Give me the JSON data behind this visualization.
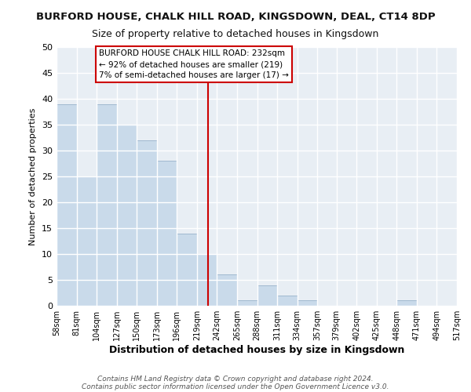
{
  "title": "BURFORD HOUSE, CHALK HILL ROAD, KINGSDOWN, DEAL, CT14 8DP",
  "subtitle": "Size of property relative to detached houses in Kingsdown",
  "xlabel": "Distribution of detached houses by size in Kingsdown",
  "ylabel": "Number of detached properties",
  "bar_edges": [
    58,
    81,
    104,
    127,
    150,
    173,
    196,
    219,
    242,
    265,
    288,
    311,
    334,
    357,
    379,
    402,
    425,
    448,
    471,
    494,
    517
  ],
  "bar_heights": [
    39,
    25,
    39,
    35,
    32,
    28,
    14,
    10,
    6,
    1,
    4,
    2,
    1,
    0,
    0,
    0,
    0,
    1,
    0,
    0
  ],
  "bar_color": "#c9daea",
  "bar_edge_color": "#a0b8d0",
  "reference_line_x": 232,
  "reference_line_color": "#cc0000",
  "ylim": [
    0,
    50
  ],
  "yticks": [
    0,
    5,
    10,
    15,
    20,
    25,
    30,
    35,
    40,
    45,
    50
  ],
  "annotation_box_title": "BURFORD HOUSE CHALK HILL ROAD: 232sqm",
  "annotation_line1": "← 92% of detached houses are smaller (219)",
  "annotation_line2": "7% of semi-detached houses are larger (17) →",
  "annotation_box_color": "#ffffff",
  "annotation_box_edge_color": "#cc0000",
  "footer_line1": "Contains HM Land Registry data © Crown copyright and database right 2024.",
  "footer_line2": "Contains public sector information licensed under the Open Government Licence v3.0.",
  "background_color": "#ffffff",
  "plot_bg_color": "#e8eef4",
  "grid_color": "#ffffff",
  "title_fontsize": 9.5,
  "subtitle_fontsize": 9.0,
  "xlabel_fontsize": 9.0,
  "ylabel_fontsize": 8.0
}
